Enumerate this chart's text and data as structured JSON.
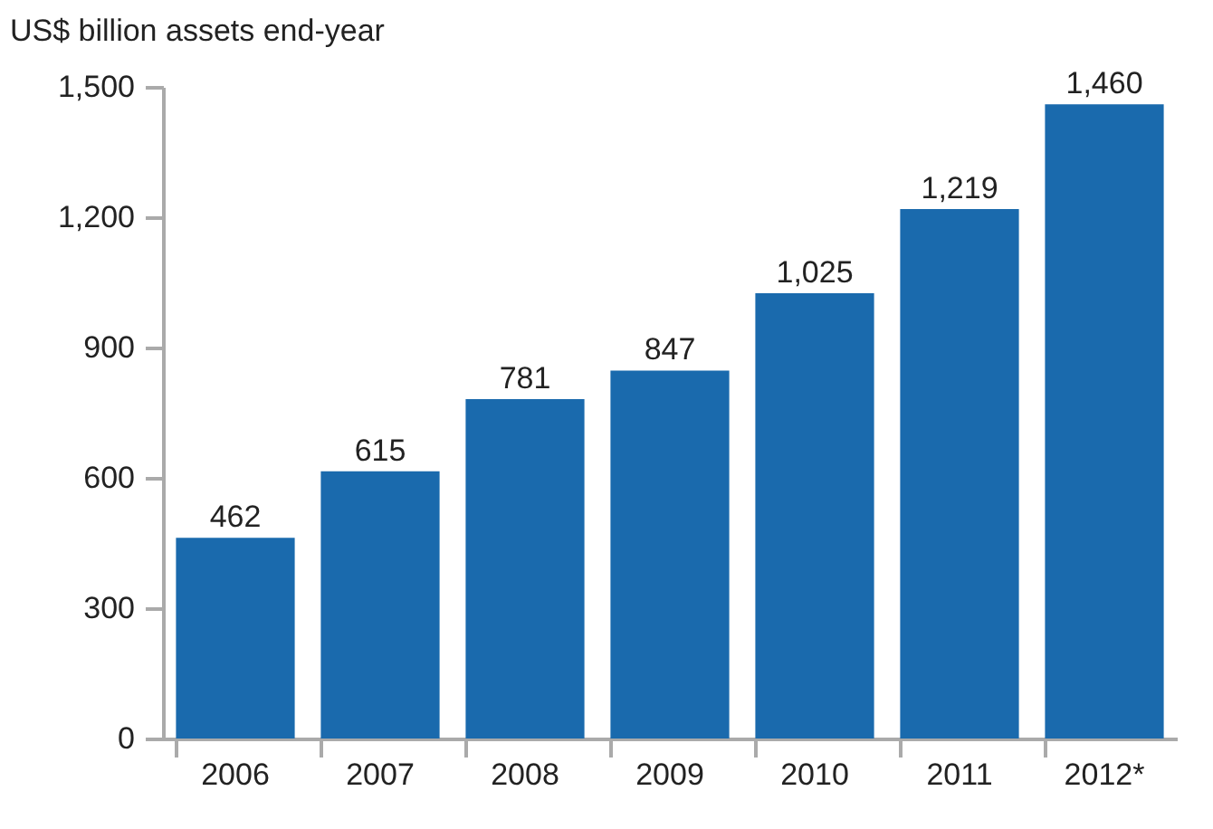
{
  "chart_data": {
    "type": "bar",
    "ylabel": "US$ billion assets end-year",
    "categories": [
      "2006",
      "2007",
      "2008",
      "2009",
      "2010",
      "2011",
      "2012*"
    ],
    "values": [
      462,
      615,
      781,
      847,
      1025,
      1219,
      1460
    ],
    "value_labels": [
      "462",
      "615",
      "781",
      "847",
      "1,025",
      "1,219",
      "1,460"
    ],
    "color": "#1a6aad",
    "ylim": [
      0,
      1500
    ],
    "yticks": [
      0,
      300,
      600,
      900,
      {
        "value": 1200,
        "label": "1,200"
      },
      {
        "value": 1500,
        "label": "1,500"
      }
    ],
    "grid": false
  }
}
